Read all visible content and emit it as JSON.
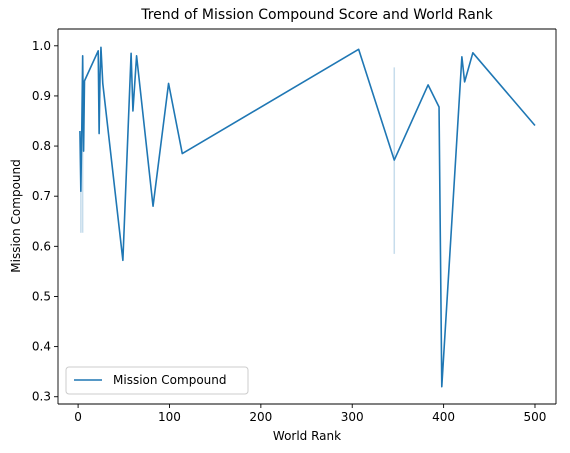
{
  "chart_data": {
    "type": "line",
    "title": "Trend of Mission Compound Score and World Rank",
    "xlabel": "World Rank",
    "ylabel": "Mission Compound",
    "xlim": [
      -22,
      523
    ],
    "ylim": [
      0.2855,
      1.0335
    ],
    "xticks": [
      0,
      100,
      200,
      300,
      400,
      500
    ],
    "yticks": [
      0.3,
      0.4,
      0.5,
      0.6,
      0.7,
      0.8,
      0.9,
      1.0
    ],
    "xtick_labels": [
      "0",
      "100",
      "200",
      "300",
      "400",
      "500"
    ],
    "ytick_labels": [
      "0.3",
      "0.4",
      "0.5",
      "0.6",
      "0.7",
      "0.8",
      "0.9",
      "1.0"
    ],
    "legend": {
      "position": "lower left",
      "entries": [
        "Mission Compound"
      ]
    },
    "grid": false,
    "series": [
      {
        "name": "Mission Compound",
        "color": "#1f77b4",
        "points": [
          [
            2,
            0.83
          ],
          [
            3,
            0.71
          ],
          [
            4,
            0.83
          ],
          [
            5,
            0.98
          ],
          [
            6,
            0.79
          ],
          [
            7,
            0.93
          ],
          [
            22,
            0.99
          ],
          [
            23,
            0.825
          ],
          [
            24,
            0.94
          ],
          [
            25,
            0.997
          ],
          [
            27,
            0.925
          ],
          [
            49,
            0.572
          ],
          [
            58,
            0.985
          ],
          [
            60,
            0.87
          ],
          [
            64,
            0.98
          ],
          [
            82,
            0.68
          ],
          [
            99,
            0.925
          ],
          [
            114,
            0.785
          ],
          [
            307,
            0.993
          ],
          [
            346,
            0.772
          ],
          [
            383,
            0.922
          ],
          [
            395,
            0.878
          ],
          [
            398,
            0.32
          ],
          [
            420,
            0.978
          ],
          [
            423,
            0.928
          ],
          [
            432,
            0.986
          ],
          [
            500,
            0.841
          ]
        ],
        "bands": [
          {
            "x": 3,
            "low": 0.627,
            "high": 0.78
          },
          {
            "x": 5,
            "low": 0.627,
            "high": 0.96
          },
          {
            "x": 346,
            "low": 0.585,
            "high": 0.957
          }
        ]
      }
    ]
  }
}
